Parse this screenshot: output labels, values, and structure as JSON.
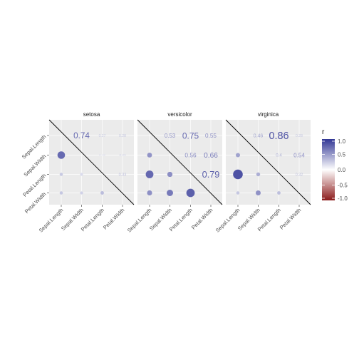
{
  "chart_data": {
    "type": "heatmap",
    "variables": [
      "Sepal.Length",
      "Sepal.Width",
      "Petal.Length",
      "Petal.Width"
    ],
    "panels": [
      {
        "name": "setosa",
        "upper": [
          {
            "row": "Sepal.Length",
            "col": "Sepal.Width",
            "r": 0.74,
            "label": "0.74"
          },
          {
            "row": "Sepal.Length",
            "col": "Petal.Length",
            "r": 0.27,
            "label": "0.27"
          },
          {
            "row": "Sepal.Length",
            "col": "Petal.Width",
            "r": 0.28,
            "label": "0.28"
          },
          {
            "row": "Sepal.Width",
            "col": "Petal.Length",
            "r": 0.18,
            "label": "0.18"
          },
          {
            "row": "Sepal.Width",
            "col": "Petal.Width",
            "r": 0.23,
            "label": "0.23"
          },
          {
            "row": "Petal.Length",
            "col": "Petal.Width",
            "r": 0.33,
            "label": "0.33"
          }
        ],
        "lower": [
          {
            "row": "Sepal.Width",
            "col": "Sepal.Length",
            "r": 0.74
          },
          {
            "row": "Petal.Length",
            "col": "Sepal.Length",
            "r": 0.27
          },
          {
            "row": "Petal.Length",
            "col": "Sepal.Width",
            "r": 0.18
          },
          {
            "row": "Petal.Width",
            "col": "Sepal.Length",
            "r": 0.28
          },
          {
            "row": "Petal.Width",
            "col": "Sepal.Width",
            "r": 0.23
          },
          {
            "row": "Petal.Width",
            "col": "Petal.Length",
            "r": 0.33
          }
        ]
      },
      {
        "name": "versicolor",
        "upper": [
          {
            "row": "Sepal.Length",
            "col": "Sepal.Width",
            "r": 0.53,
            "label": "0.53"
          },
          {
            "row": "Sepal.Length",
            "col": "Petal.Length",
            "r": 0.75,
            "label": "0.75"
          },
          {
            "row": "Sepal.Length",
            "col": "Petal.Width",
            "r": 0.55,
            "label": "0.55"
          },
          {
            "row": "Sepal.Width",
            "col": "Petal.Length",
            "r": 0.56,
            "label": "0.56"
          },
          {
            "row": "Sepal.Width",
            "col": "Petal.Width",
            "r": 0.66,
            "label": "0.66"
          },
          {
            "row": "Petal.Length",
            "col": "Petal.Width",
            "r": 0.79,
            "label": "0.79"
          }
        ],
        "lower": [
          {
            "row": "Sepal.Width",
            "col": "Sepal.Length",
            "r": 0.53
          },
          {
            "row": "Petal.Length",
            "col": "Sepal.Length",
            "r": 0.75
          },
          {
            "row": "Petal.Length",
            "col": "Sepal.Width",
            "r": 0.56
          },
          {
            "row": "Petal.Width",
            "col": "Sepal.Length",
            "r": 0.55
          },
          {
            "row": "Petal.Width",
            "col": "Sepal.Width",
            "r": 0.66
          },
          {
            "row": "Petal.Width",
            "col": "Petal.Length",
            "r": 0.79
          }
        ]
      },
      {
        "name": "virginica",
        "upper": [
          {
            "row": "Sepal.Length",
            "col": "Sepal.Width",
            "r": 0.46,
            "label": "0.46"
          },
          {
            "row": "Sepal.Length",
            "col": "Petal.Length",
            "r": 0.86,
            "label": "0.86"
          },
          {
            "row": "Sepal.Length",
            "col": "Petal.Width",
            "r": 0.28,
            "label": "0.28"
          },
          {
            "row": "Sepal.Width",
            "col": "Petal.Length",
            "r": 0.4,
            "label": "0.4"
          },
          {
            "row": "Sepal.Width",
            "col": "Petal.Width",
            "r": 0.54,
            "label": "0.54"
          },
          {
            "row": "Petal.Length",
            "col": "Petal.Width",
            "r": 0.32,
            "label": "0.32"
          }
        ],
        "lower": [
          {
            "row": "Sepal.Width",
            "col": "Sepal.Length",
            "r": 0.46
          },
          {
            "row": "Petal.Length",
            "col": "Sepal.Length",
            "r": 0.86
          },
          {
            "row": "Petal.Length",
            "col": "Sepal.Width",
            "r": 0.4
          },
          {
            "row": "Petal.Width",
            "col": "Sepal.Length",
            "r": 0.28
          },
          {
            "row": "Petal.Width",
            "col": "Sepal.Width",
            "r": 0.54
          },
          {
            "row": "Petal.Width",
            "col": "Petal.Length",
            "r": 0.32
          }
        ]
      }
    ],
    "legend": {
      "title": "r",
      "ticks": [
        {
          "value": 1,
          "label": "1.0"
        },
        {
          "value": 0.5,
          "label": "0.5"
        },
        {
          "value": 0,
          "label": "0.0"
        },
        {
          "value": -0.5,
          "label": "-0.5"
        },
        {
          "value": -1,
          "label": "-1.0"
        }
      ],
      "limits": [
        -1,
        1
      ],
      "placement": "right"
    },
    "colors": {
      "high": "#313695",
      "mid": "#ffffff",
      "low": "#8b1a1a",
      "panel_background": "#ebebeb",
      "gridline": "#ffffff",
      "diagonal": "#000000",
      "strip_text": "#1a1a1a",
      "axis_text": "#4d4d4d"
    },
    "grid": true
  }
}
